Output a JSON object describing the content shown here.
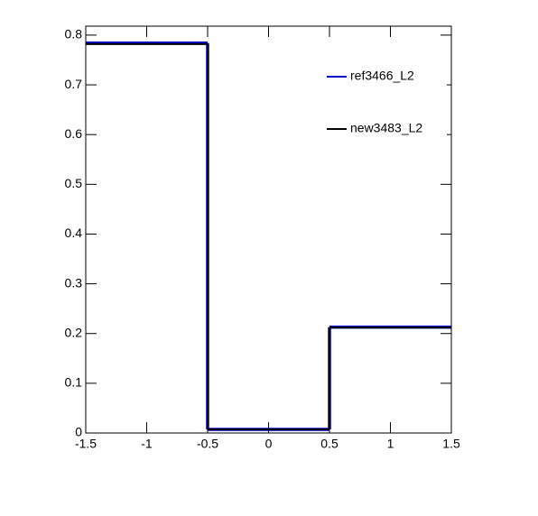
{
  "chart_data": {
    "type": "histogram",
    "bins": [
      -1.5,
      -0.5,
      0.5,
      1.5
    ],
    "series": [
      {
        "name": "ref3466_L2",
        "color": "#0000cc",
        "values": [
          0.784,
          0.0073,
          0.213
        ]
      },
      {
        "name": "new3483_L2",
        "color": "#000000",
        "values": [
          0.782,
          0.0073,
          0.212
        ]
      }
    ],
    "xlim": [
      -1.5,
      1.5
    ],
    "xticks": [
      -1.5,
      -1,
      -0.5,
      0,
      0.5,
      1,
      1.5
    ],
    "ylim": [
      0,
      0.818
    ],
    "yticks": [
      0,
      0.1,
      0.2,
      0.3,
      0.4,
      0.5,
      0.6,
      0.7,
      0.8
    ],
    "legend": "top-right"
  }
}
